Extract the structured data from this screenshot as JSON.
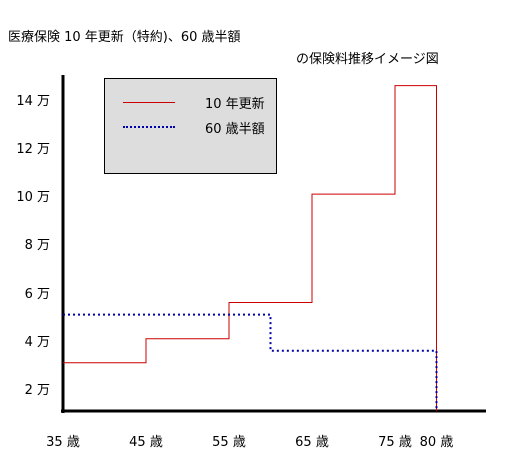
{
  "chart_data": {
    "type": "line",
    "title": "医療保険 10 年更新（特約)、60 歳半額",
    "subtitle": "の保険料推移イメージ図",
    "x_ticks": [
      "35 歳",
      "45 歳",
      "55 歳",
      "65 歳",
      "75 歳",
      "80 歳"
    ],
    "y_ticks": [
      "2 万",
      "4 万",
      "6 万",
      "8 万",
      "10 万",
      "12 万",
      "14 万"
    ],
    "xlim": [
      35,
      85
    ],
    "ylim": [
      1,
      15
    ],
    "series": [
      {
        "name": "10 年更新",
        "color": "#cc0000",
        "style": "solid",
        "points": [
          [
            35,
            3
          ],
          [
            45,
            3
          ],
          [
            45,
            4
          ],
          [
            55,
            4
          ],
          [
            55,
            5.5
          ],
          [
            65,
            5.5
          ],
          [
            65,
            10
          ],
          [
            75,
            10
          ],
          [
            75,
            14.5
          ],
          [
            80,
            14.5
          ],
          [
            80,
            0
          ]
        ]
      },
      {
        "name": "60 歳半額",
        "color": "#0000aa",
        "style": "dotted",
        "points": [
          [
            35,
            5
          ],
          [
            60,
            5
          ],
          [
            60,
            3.5
          ],
          [
            80,
            3.5
          ],
          [
            80,
            0
          ]
        ]
      }
    ],
    "legend": "top-left",
    "grid": false
  }
}
